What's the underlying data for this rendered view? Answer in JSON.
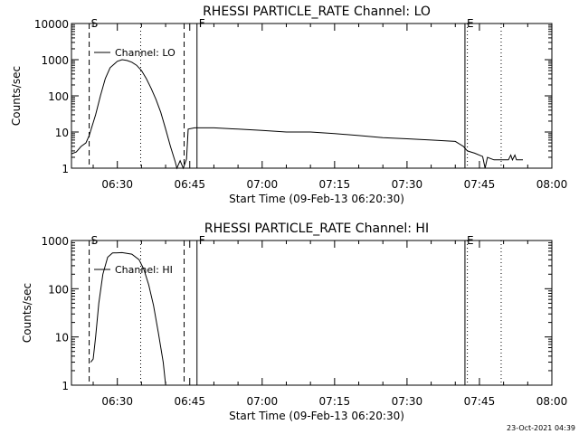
{
  "chart_data": [
    {
      "type": "line",
      "title": "RHESSI PARTICLE_RATE Channel: LO",
      "xlabel": "Start Time (09-Feb-13 06:20:30)",
      "ylabel": "Counts/sec",
      "y_scale": "log",
      "ylim": [
        1,
        10000
      ],
      "xlim": [
        "06:20:30",
        "08:00:00"
      ],
      "x_ticks": [
        "06:30",
        "06:45",
        "07:00",
        "07:15",
        "07:30",
        "07:45",
        "08:00"
      ],
      "y_ticks": [
        "1",
        "10",
        "100",
        "1000",
        "10000"
      ],
      "legend": [
        "Channel: LO"
      ],
      "legend_position": "top-left",
      "markers": [
        {
          "label": "S",
          "time": "06:24:10",
          "style": "dashed"
        },
        {
          "label": "",
          "time": "06:34:50",
          "style": "dotted"
        },
        {
          "label": "",
          "time": "06:43:50",
          "style": "dashed"
        },
        {
          "label": "F",
          "time": "06:46:30",
          "style": "solid"
        },
        {
          "label": "E",
          "time": "07:42:00",
          "style": "solid"
        },
        {
          "label": "",
          "time": "07:42:30",
          "style": "dotted"
        },
        {
          "label": "",
          "time": "07:49:30",
          "style": "dotted"
        }
      ],
      "series": [
        {
          "name": "Channel: LO",
          "points": [
            [
              "06:20:30",
              2.5
            ],
            [
              "06:21:30",
              2.8
            ],
            [
              "06:22:30",
              4
            ],
            [
              "06:23:30",
              5
            ],
            [
              "06:24:10",
              8
            ],
            [
              "06:25:30",
              30
            ],
            [
              "06:26:30",
              100
            ],
            [
              "06:27:30",
              300
            ],
            [
              "06:28:30",
              600
            ],
            [
              "06:30:00",
              900
            ],
            [
              "06:31:00",
              1000
            ],
            [
              "06:32:00",
              950
            ],
            [
              "06:33:00",
              850
            ],
            [
              "06:34:00",
              700
            ],
            [
              "06:35:00",
              500
            ],
            [
              "06:36:00",
              300
            ],
            [
              "06:37:00",
              160
            ],
            [
              "06:38:00",
              80
            ],
            [
              "06:39:00",
              35
            ],
            [
              "06:40:00",
              12
            ],
            [
              "06:41:00",
              4
            ],
            [
              "06:42:00",
              1.5
            ],
            [
              "06:42:20",
              1
            ],
            [
              "06:43:00",
              1.6
            ],
            [
              "06:43:40",
              1
            ],
            [
              "06:44:20",
              1.8
            ],
            [
              "06:44:40",
              12
            ],
            [
              "06:46:00",
              13
            ],
            [
              "06:50:00",
              13
            ],
            [
              "06:55:00",
              12
            ],
            [
              "07:00:00",
              11
            ],
            [
              "07:05:00",
              10
            ],
            [
              "07:10:00",
              10
            ],
            [
              "07:15:00",
              9
            ],
            [
              "07:20:00",
              8
            ],
            [
              "07:25:00",
              7
            ],
            [
              "07:30:00",
              6.5
            ],
            [
              "07:35:00",
              6
            ],
            [
              "07:40:00",
              5.5
            ],
            [
              "07:41:40",
              4
            ],
            [
              "07:42:30",
              3
            ],
            [
              "07:44:00",
              2.6
            ],
            [
              "07:45:40",
              2.1
            ],
            [
              "07:46:10",
              1
            ],
            [
              "07:46:40",
              2
            ],
            [
              "07:48:00",
              1.7
            ],
            [
              "07:51:00",
              1.7
            ],
            [
              "07:51:30",
              2.3
            ],
            [
              "07:51:50",
              1.7
            ],
            [
              "07:52:20",
              2.3
            ],
            [
              "07:52:40",
              1.7
            ],
            [
              "07:54:00",
              1.7
            ]
          ]
        }
      ]
    },
    {
      "type": "line",
      "title": "RHESSI PARTICLE_RATE Channel: HI",
      "xlabel": "Start Time (09-Feb-13 06:20:30)",
      "ylabel": "Counts/sec",
      "y_scale": "log",
      "ylim": [
        1,
        1000
      ],
      "xlim": [
        "06:20:30",
        "08:00:00"
      ],
      "x_ticks": [
        "06:30",
        "06:45",
        "07:00",
        "07:15",
        "07:30",
        "07:45",
        "08:00"
      ],
      "y_ticks": [
        "1",
        "10",
        "100",
        "1000"
      ],
      "legend": [
        "Channel: HI"
      ],
      "legend_position": "top-left",
      "markers": [
        {
          "label": "S",
          "time": "06:24:10",
          "style": "dashed"
        },
        {
          "label": "",
          "time": "06:34:50",
          "style": "dotted"
        },
        {
          "label": "",
          "time": "06:43:50",
          "style": "dashed"
        },
        {
          "label": "F",
          "time": "06:46:30",
          "style": "solid"
        },
        {
          "label": "E",
          "time": "07:42:00",
          "style": "solid"
        },
        {
          "label": "",
          "time": "07:42:30",
          "style": "dotted"
        },
        {
          "label": "",
          "time": "07:49:30",
          "style": "dotted"
        }
      ],
      "series": [
        {
          "name": "Channel: HI",
          "points": [
            [
              "06:24:30",
              3
            ],
            [
              "06:25:00",
              3.5
            ],
            [
              "06:25:30",
              10
            ],
            [
              "06:26:10",
              50
            ],
            [
              "06:27:00",
              200
            ],
            [
              "06:28:00",
              450
            ],
            [
              "06:29:00",
              550
            ],
            [
              "06:31:00",
              560
            ],
            [
              "06:33:00",
              520
            ],
            [
              "06:34:30",
              400
            ],
            [
              "06:35:30",
              250
            ],
            [
              "06:36:30",
              120
            ],
            [
              "06:37:30",
              45
            ],
            [
              "06:38:30",
              12
            ],
            [
              "06:39:30",
              3
            ],
            [
              "06:40:00",
              1
            ]
          ]
        }
      ]
    }
  ],
  "footer": {
    "timestamp": "23-Oct-2021 04:39"
  }
}
